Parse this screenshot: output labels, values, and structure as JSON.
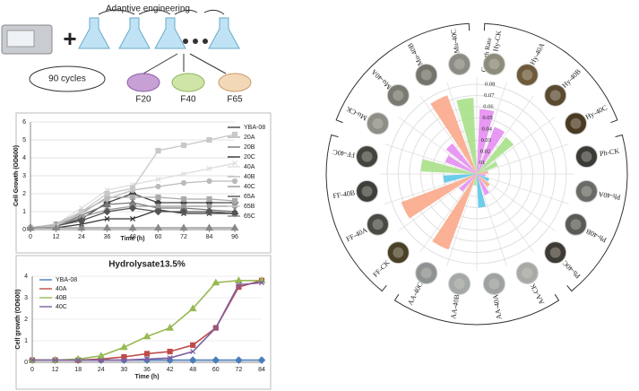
{
  "diagram": {
    "title": "Adaptive engineering",
    "cycles": "90 cycles",
    "stages": [
      "F20",
      "F40",
      "F65"
    ]
  },
  "chart_data": [
    {
      "type": "line",
      "ylabel": "Cell Growth (OD600)",
      "xlabel": "Time (h)",
      "x": [
        0,
        12,
        24,
        36,
        48,
        60,
        72,
        84,
        96
      ],
      "xlim": [
        0,
        96
      ],
      "xticks": [
        0,
        12,
        24,
        36,
        48,
        60,
        72,
        84,
        96
      ],
      "ylim": [
        0,
        6
      ],
      "yticks": [
        0,
        1,
        2,
        3,
        4,
        5,
        6
      ],
      "legend": "right",
      "series": [
        {
          "name": "YBA-08",
          "color": "#444444",
          "marker": "diamond",
          "values": [
            0.1,
            0.2,
            0.6,
            1.5,
            2.0,
            1.5,
            1.5,
            1.5,
            1.5
          ]
        },
        {
          "name": "20A",
          "color": "#aaaaaa",
          "marker": "square",
          "values": [
            0.1,
            0.3,
            0.9,
            1.8,
            1.8,
            1.8,
            1.7,
            1.7,
            1.6
          ]
        },
        {
          "name": "20B",
          "color": "#777777",
          "marker": "triangle",
          "values": [
            0.1,
            0.2,
            0.8,
            1.4,
            1.5,
            1.2,
            1.2,
            1.1,
            1.0
          ]
        },
        {
          "name": "20C",
          "color": "#333333",
          "marker": "x",
          "values": [
            0.1,
            0.1,
            0.3,
            0.6,
            0.6,
            1.1,
            0.9,
            0.9,
            0.9
          ]
        },
        {
          "name": "40A",
          "color": "#dddddd",
          "marker": "x",
          "values": [
            0.1,
            0.3,
            1.2,
            2.2,
            2.5,
            2.8,
            3.1,
            3.4,
            3.7
          ]
        },
        {
          "name": "40B",
          "color": "#bbbbbb",
          "marker": "circle",
          "values": [
            0.1,
            0.3,
            1.0,
            1.7,
            2.2,
            2.4,
            2.6,
            2.7,
            2.7
          ]
        },
        {
          "name": "40C",
          "color": "#999999",
          "marker": "circle",
          "values": [
            0.1,
            0.2,
            0.7,
            1.1,
            1.3,
            1.3,
            1.3,
            1.3,
            1.3
          ]
        },
        {
          "name": "65A",
          "color": "#555555",
          "marker": "diamond",
          "values": [
            0.1,
            0.2,
            0.5,
            1.0,
            1.2,
            1.0,
            1.0,
            1.0,
            0.9
          ]
        },
        {
          "name": "65B",
          "color": "#c8c8c8",
          "marker": "square",
          "values": [
            0.1,
            0.2,
            1.0,
            2.0,
            2.3,
            4.4,
            4.7,
            5.0,
            5.3
          ]
        },
        {
          "name": "65C",
          "color": "#888888",
          "marker": "triangle",
          "values": [
            0.1,
            0.1,
            0.1,
            0.1,
            0.1,
            0.1,
            0.1,
            0.1,
            0.1
          ]
        }
      ]
    },
    {
      "type": "line",
      "title": "Hydrolysate13.5%",
      "ylabel": "Cell growth (OD600)",
      "xlabel": "Time (h)",
      "categories": [
        "0",
        "12",
        "18",
        "24",
        "30",
        "36",
        "42",
        "48",
        "60",
        "72",
        "84"
      ],
      "ylim": [
        0,
        4
      ],
      "yticks": [
        0,
        1,
        2,
        3,
        4
      ],
      "legend": "upper left",
      "series": [
        {
          "name": "YBA-08",
          "color": "#4a7ebb",
          "marker": "diamond",
          "values": [
            0.1,
            0.1,
            0.1,
            0.1,
            0.1,
            0.1,
            0.1,
            0.1,
            0.1,
            0.1,
            0.1
          ]
        },
        {
          "name": "40A",
          "color": "#be4b48",
          "marker": "square",
          "values": [
            0.1,
            0.1,
            0.1,
            0.15,
            0.25,
            0.4,
            0.5,
            0.8,
            1.6,
            3.5,
            3.8
          ]
        },
        {
          "name": "40B",
          "color": "#98b954",
          "marker": "triangle",
          "values": [
            0.1,
            0.1,
            0.15,
            0.3,
            0.7,
            1.2,
            1.6,
            2.5,
            3.7,
            3.8,
            3.8
          ]
        },
        {
          "name": "40C",
          "color": "#7d60a0",
          "marker": "x",
          "values": [
            0.1,
            0.1,
            0.1,
            0.1,
            0.1,
            0.15,
            0.2,
            0.5,
            1.6,
            3.6,
            3.7
          ]
        }
      ]
    },
    {
      "type": "radialbar",
      "rlabel": "Growth Rate",
      "categories": [
        "Hy-CK",
        "Hy-40A",
        "Hy-40B",
        "Hy-40C",
        "Ph-CK",
        "Ph-40A",
        "Ph-40B",
        "Ph-40C",
        "AA-CK",
        "AA-40A",
        "AA-40B",
        "AA-40C",
        "FF-CK",
        "FF-40A",
        "FF-40B",
        "FF-40C",
        "Mu-CK",
        "Mu-40A",
        "Mu-40B",
        "Mu-40C"
      ],
      "values": [
        0.058,
        0.045,
        0.042,
        0.02,
        0.01,
        0.008,
        0.012,
        0.015,
        0.02,
        0.03,
        0.01,
        0.072,
        0.02,
        0.072,
        0.03,
        0.05,
        0.03,
        0.035,
        0.075,
        0.068
      ],
      "colors": [
        "#e58ef2",
        "#e58ef2",
        "#a8e08a",
        "#a8e08a",
        "#f9a98a",
        "#e58ef2",
        "#5bc8e8",
        "#f9a98a",
        "#e58ef2",
        "#5bc8e8",
        "#a8e08a",
        "#f9a98a",
        "#e58ef2",
        "#f9a98a",
        "#5bc8e8",
        "#a8e08a",
        "#e58ef2",
        "#e58ef2",
        "#f9a98a",
        "#a8e08a"
      ],
      "rlim": [
        0,
        0.08
      ],
      "rticks": [
        {
          "value": 0.01,
          "label": "01"
        },
        0.02,
        0.03,
        0.04,
        0.05,
        0.06,
        0.07,
        0.08
      ],
      "grid": true
    }
  ]
}
